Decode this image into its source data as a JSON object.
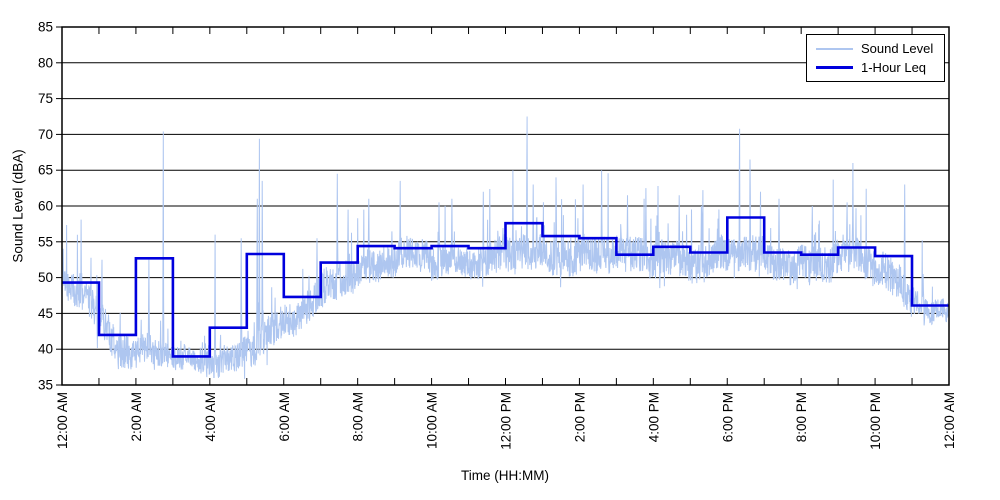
{
  "chart_data": {
    "type": "line",
    "title": "",
    "xlabel": "Time (HH:MM)",
    "ylabel": "Sound Level (dBA)",
    "x_ticks": [
      "12:00 AM",
      "2:00 AM",
      "4:00 AM",
      "6:00 AM",
      "8:00 AM",
      "10:00 AM",
      "12:00 PM",
      "2:00 PM",
      "4:00 PM",
      "6:00 PM",
      "8:00 PM",
      "10:00 PM",
      "12:00 AM"
    ],
    "x_tick_interval_hours": 2,
    "x_minor_tick_interval_hours": 1,
    "x_range_hours": [
      0,
      24
    ],
    "ylim": [
      35,
      85
    ],
    "y_ticks": [
      35,
      40,
      45,
      50,
      55,
      60,
      65,
      70,
      75,
      80,
      85
    ],
    "grid": "horizontal-only",
    "grid_color": "#000000",
    "background_color": "#ffffff",
    "legend_position": "top-right",
    "series": [
      {
        "name": "Sound Level",
        "type": "noisy-line",
        "color": "#aec6f0",
        "hour_center_means_dBA": [
          48,
          40.5,
          40,
          37.5,
          38.5,
          42,
          44.5,
          50.5,
          52,
          52.5,
          52.5,
          52.5,
          53,
          53.5,
          53.5,
          52.5,
          53,
          52.5,
          53,
          52.5,
          52,
          52.5,
          50.5,
          45
        ],
        "hour_spread_dBA": [
          2.8,
          3.0,
          2.2,
          1.8,
          2.2,
          2.8,
          2.8,
          3.0,
          2.8,
          2.8,
          2.8,
          2.8,
          3.0,
          3.0,
          3.0,
          3.0,
          3.0,
          3.0,
          3.0,
          3.0,
          3.0,
          3.0,
          3.2,
          1.8
        ],
        "spikes_time_h_peak_dBA": [
          [
            1.08,
            52.5
          ],
          [
            2.35,
            52.5
          ],
          [
            2.74,
            70.4
          ],
          [
            4.14,
            56.0
          ],
          [
            4.85,
            55.5
          ],
          [
            5.28,
            61.0
          ],
          [
            5.34,
            69.4
          ],
          [
            5.42,
            63.5
          ],
          [
            6.9,
            55.5
          ],
          [
            7.45,
            64.5
          ],
          [
            7.74,
            59.5
          ],
          [
            8.3,
            61.0
          ],
          [
            9.15,
            63.5
          ],
          [
            10.2,
            60.5
          ],
          [
            10.55,
            61.0
          ],
          [
            11.4,
            62.0
          ],
          [
            12.2,
            65.0
          ],
          [
            12.58,
            72.5
          ],
          [
            12.75,
            63.0
          ],
          [
            13.37,
            64.0
          ],
          [
            14.1,
            63.0
          ],
          [
            14.6,
            65.0
          ],
          [
            15.3,
            61.5
          ],
          [
            15.8,
            62.5
          ],
          [
            16.7,
            61.5
          ],
          [
            17.3,
            60.0
          ],
          [
            18.33,
            70.8
          ],
          [
            18.62,
            66.5
          ],
          [
            18.9,
            62.0
          ],
          [
            19.4,
            61.0
          ],
          [
            20.3,
            60.0
          ],
          [
            21.24,
            60.5
          ],
          [
            21.4,
            66.0
          ],
          [
            22.8,
            63.0
          ],
          [
            23.3,
            50.5
          ]
        ]
      },
      {
        "name": "1-Hour Leq",
        "type": "step",
        "color": "#0000dd",
        "hourly_leq_dBA": [
          49.3,
          42.0,
          52.7,
          39.0,
          43.0,
          53.3,
          47.3,
          52.1,
          54.4,
          54.1,
          54.4,
          54.1,
          57.6,
          55.8,
          55.5,
          53.2,
          54.3,
          53.5,
          58.4,
          53.5,
          53.2,
          54.2,
          53.0,
          46.1
        ]
      }
    ]
  }
}
